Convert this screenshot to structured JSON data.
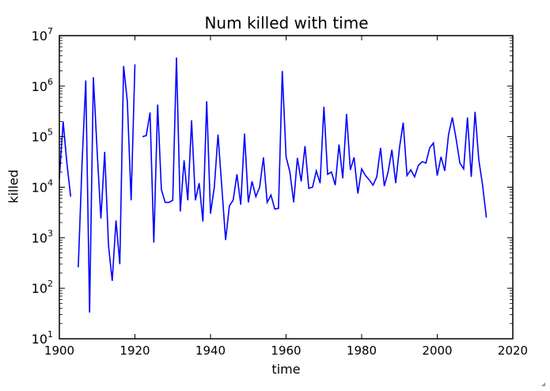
{
  "chart_data": {
    "type": "line",
    "title": "Num killed with time",
    "xlabel": "time",
    "ylabel": "killed",
    "xlim": [
      1900,
      2020
    ],
    "ylim": [
      10,
      10000000
    ],
    "yscale": "log",
    "grid": false,
    "legend": null,
    "x_ticks": [
      "1900",
      "1920",
      "1940",
      "1960",
      "1980",
      "2000",
      "2020"
    ],
    "y_ticks": [
      {
        "base": "10",
        "exp": "1"
      },
      {
        "base": "10",
        "exp": "2"
      },
      {
        "base": "10",
        "exp": "3"
      },
      {
        "base": "10",
        "exp": "4"
      },
      {
        "base": "10",
        "exp": "5"
      },
      {
        "base": "10",
        "exp": "6"
      },
      {
        "base": "10",
        "exp": "7"
      }
    ],
    "series": [
      {
        "name": "killed",
        "color": "#0000ff",
        "x": [
          1900,
          1901,
          1902,
          1903,
          1904,
          1905,
          1906,
          1907,
          1908,
          1909,
          1910,
          1911,
          1912,
          1913,
          1914,
          1915,
          1916,
          1917,
          1918,
          1919,
          1920,
          1921,
          1922,
          1923,
          1924,
          1925,
          1926,
          1927,
          1928,
          1929,
          1930,
          1931,
          1932,
          1933,
          1934,
          1935,
          1936,
          1937,
          1938,
          1939,
          1940,
          1941,
          1942,
          1943,
          1944,
          1945,
          1946,
          1947,
          1948,
          1949,
          1950,
          1951,
          1952,
          1953,
          1954,
          1955,
          1956,
          1957,
          1958,
          1959,
          1960,
          1961,
          1962,
          1963,
          1964,
          1965,
          1966,
          1967,
          1968,
          1969,
          1970,
          1971,
          1972,
          1973,
          1974,
          1975,
          1976,
          1977,
          1978,
          1979,
          1980,
          1981,
          1982,
          1983,
          1984,
          1985,
          1986,
          1987,
          1988,
          1989,
          1990,
          1991,
          1992,
          1993,
          1994,
          1995,
          1996,
          1997,
          1998,
          1999,
          2000,
          2001,
          2002,
          2003,
          2004,
          2005,
          2006,
          2007,
          2008,
          2009,
          2010,
          2011,
          2012,
          2013
        ],
        "values": [
          15000,
          200000,
          30000,
          6500,
          null,
          260,
          30000,
          1300000,
          33,
          1500000,
          50000,
          2400,
          50000,
          700,
          140,
          2200,
          300,
          2500000,
          500000,
          5500,
          2700000,
          null,
          100000,
          105000,
          300000,
          800,
          430000,
          9000,
          5000,
          5000,
          5500,
          3700000,
          3300,
          34000,
          5500,
          210000,
          5500,
          12000,
          2100,
          500000,
          3000,
          10000,
          110000,
          10000,
          900,
          4300,
          5500,
          18000,
          4500,
          115000,
          5000,
          13000,
          6500,
          10000,
          39000,
          5000,
          7000,
          3700,
          3800,
          2000000,
          40000,
          20000,
          5000,
          38000,
          13000,
          65000,
          9500,
          10000,
          21000,
          12000,
          390000,
          18000,
          20000,
          11000,
          70000,
          15000,
          280000,
          22000,
          39000,
          7500,
          23000,
          17000,
          14000,
          11000,
          16000,
          60000,
          10500,
          20000,
          55000,
          12000,
          60000,
          190000,
          17000,
          22000,
          16000,
          27000,
          32000,
          30000,
          60000,
          75000,
          17000,
          40000,
          21000,
          110000,
          240000,
          90000,
          30000,
          23000,
          240000,
          16000,
          310000,
          35000,
          11000,
          2500
        ]
      }
    ]
  },
  "window": {
    "resize_grip": "resize-grip-icon"
  }
}
